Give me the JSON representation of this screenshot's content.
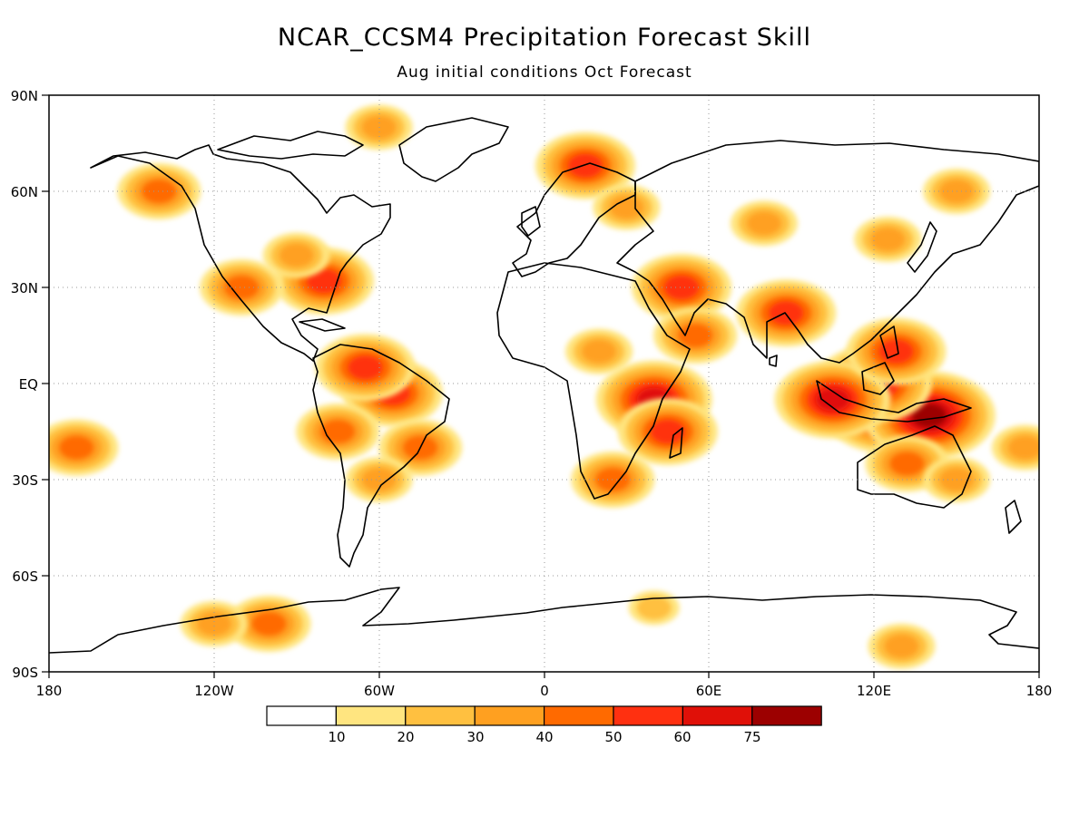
{
  "title": "NCAR_CCSM4 Precipitation Forecast Skill",
  "subtitle": "Aug initial conditions  Oct Forecast",
  "map": {
    "lat_labels": [
      "90N",
      "60N",
      "30N",
      "EQ",
      "30S",
      "60S",
      "90S"
    ],
    "lon_labels": [
      "180",
      "120W",
      "60W",
      "0",
      "60E",
      "120E",
      "180"
    ],
    "grid": "dotted",
    "projection": "cylindrical equidistant"
  },
  "colorbar": {
    "labels": [
      "10",
      "20",
      "30",
      "40",
      "50",
      "60",
      "75"
    ],
    "colors": [
      "#ffffff",
      "#ffe580",
      "#ffc040",
      "#ffa020",
      "#ff6a00",
      "#ff3010",
      "#e01008",
      "#9c0000"
    ]
  },
  "chart_data": {
    "type": "heatmap",
    "title": "NCAR_CCSM4 Precipitation Forecast Skill",
    "subtitle": "Aug initial conditions  Oct Forecast",
    "levels": [
      10,
      20,
      30,
      40,
      50,
      60,
      75
    ],
    "xlim": [
      -180,
      180
    ],
    "ylim": [
      -90,
      90
    ],
    "skill_regions": [
      {
        "lon": 125,
        "lat": -8,
        "level": 75
      },
      {
        "lon": 140,
        "lat": -10,
        "level": 75
      },
      {
        "lon": 120,
        "lat": 0,
        "level": 60
      },
      {
        "lon": 105,
        "lat": -5,
        "level": 60
      },
      {
        "lon": 128,
        "lat": 10,
        "level": 50
      },
      {
        "lon": 88,
        "lat": 22,
        "level": 50
      },
      {
        "lon": 132,
        "lat": -25,
        "level": 40
      },
      {
        "lon": 150,
        "lat": -30,
        "level": 30
      },
      {
        "lon": 40,
        "lat": -5,
        "level": 60
      },
      {
        "lon": 45,
        "lat": -15,
        "level": 50
      },
      {
        "lon": 50,
        "lat": 30,
        "level": 50
      },
      {
        "lon": 55,
        "lat": 15,
        "level": 40
      },
      {
        "lon": 20,
        "lat": 10,
        "level": 30
      },
      {
        "lon": 25,
        "lat": -30,
        "level": 40
      },
      {
        "lon": -55,
        "lat": -3,
        "level": 50
      },
      {
        "lon": -65,
        "lat": 5,
        "level": 50
      },
      {
        "lon": -75,
        "lat": -15,
        "level": 40
      },
      {
        "lon": -45,
        "lat": -20,
        "level": 40
      },
      {
        "lon": -60,
        "lat": -30,
        "level": 30
      },
      {
        "lon": -80,
        "lat": 32,
        "level": 50
      },
      {
        "lon": -110,
        "lat": 30,
        "level": 40
      },
      {
        "lon": -90,
        "lat": 40,
        "level": 30
      },
      {
        "lon": -140,
        "lat": 60,
        "level": 40
      },
      {
        "lon": -60,
        "lat": 80,
        "level": 30
      },
      {
        "lon": 15,
        "lat": 68,
        "level": 50
      },
      {
        "lon": 30,
        "lat": 55,
        "level": 30
      },
      {
        "lon": 80,
        "lat": 50,
        "level": 30
      },
      {
        "lon": 125,
        "lat": 45,
        "level": 30
      },
      {
        "lon": 150,
        "lat": 60,
        "level": 30
      },
      {
        "lon": -170,
        "lat": -20,
        "level": 40
      },
      {
        "lon": 175,
        "lat": -20,
        "level": 30
      },
      {
        "lon": -100,
        "lat": -75,
        "level": 40
      },
      {
        "lon": -120,
        "lat": -75,
        "level": 30
      },
      {
        "lon": 130,
        "lat": -82,
        "level": 30
      },
      {
        "lon": 40,
        "lat": -70,
        "level": 20
      }
    ]
  }
}
